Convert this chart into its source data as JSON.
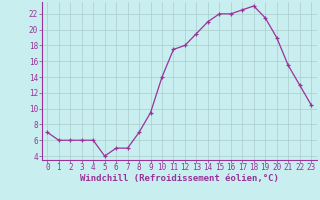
{
  "x": [
    0,
    1,
    2,
    3,
    4,
    5,
    6,
    7,
    8,
    9,
    10,
    11,
    12,
    13,
    14,
    15,
    16,
    17,
    18,
    19,
    20,
    21,
    22,
    23
  ],
  "y": [
    7,
    6,
    6,
    6,
    6,
    4,
    5,
    5,
    7,
    9.5,
    14,
    17.5,
    18,
    19.5,
    21,
    22,
    22,
    22.5,
    23,
    21.5,
    19,
    15.5,
    13,
    10.5
  ],
  "line_color": "#993399",
  "marker": "+",
  "marker_color": "#993399",
  "bg_color": "#c8eef0",
  "grid_color": "#aacccc",
  "xlabel": "Windchill (Refroidissement éolien,°C)",
  "xlabel_color": "#993399",
  "ylabel_ticks": [
    4,
    6,
    8,
    10,
    12,
    14,
    16,
    18,
    20,
    22
  ],
  "ylim": [
    3.5,
    23.5
  ],
  "xlim": [
    -0.5,
    23.5
  ],
  "xticks": [
    0,
    1,
    2,
    3,
    4,
    5,
    6,
    7,
    8,
    9,
    10,
    11,
    12,
    13,
    14,
    15,
    16,
    17,
    18,
    19,
    20,
    21,
    22,
    23
  ],
  "tick_color": "#993399",
  "tick_fontsize": 5.5,
  "xlabel_fontsize": 6.5,
  "spine_color": "#993399"
}
